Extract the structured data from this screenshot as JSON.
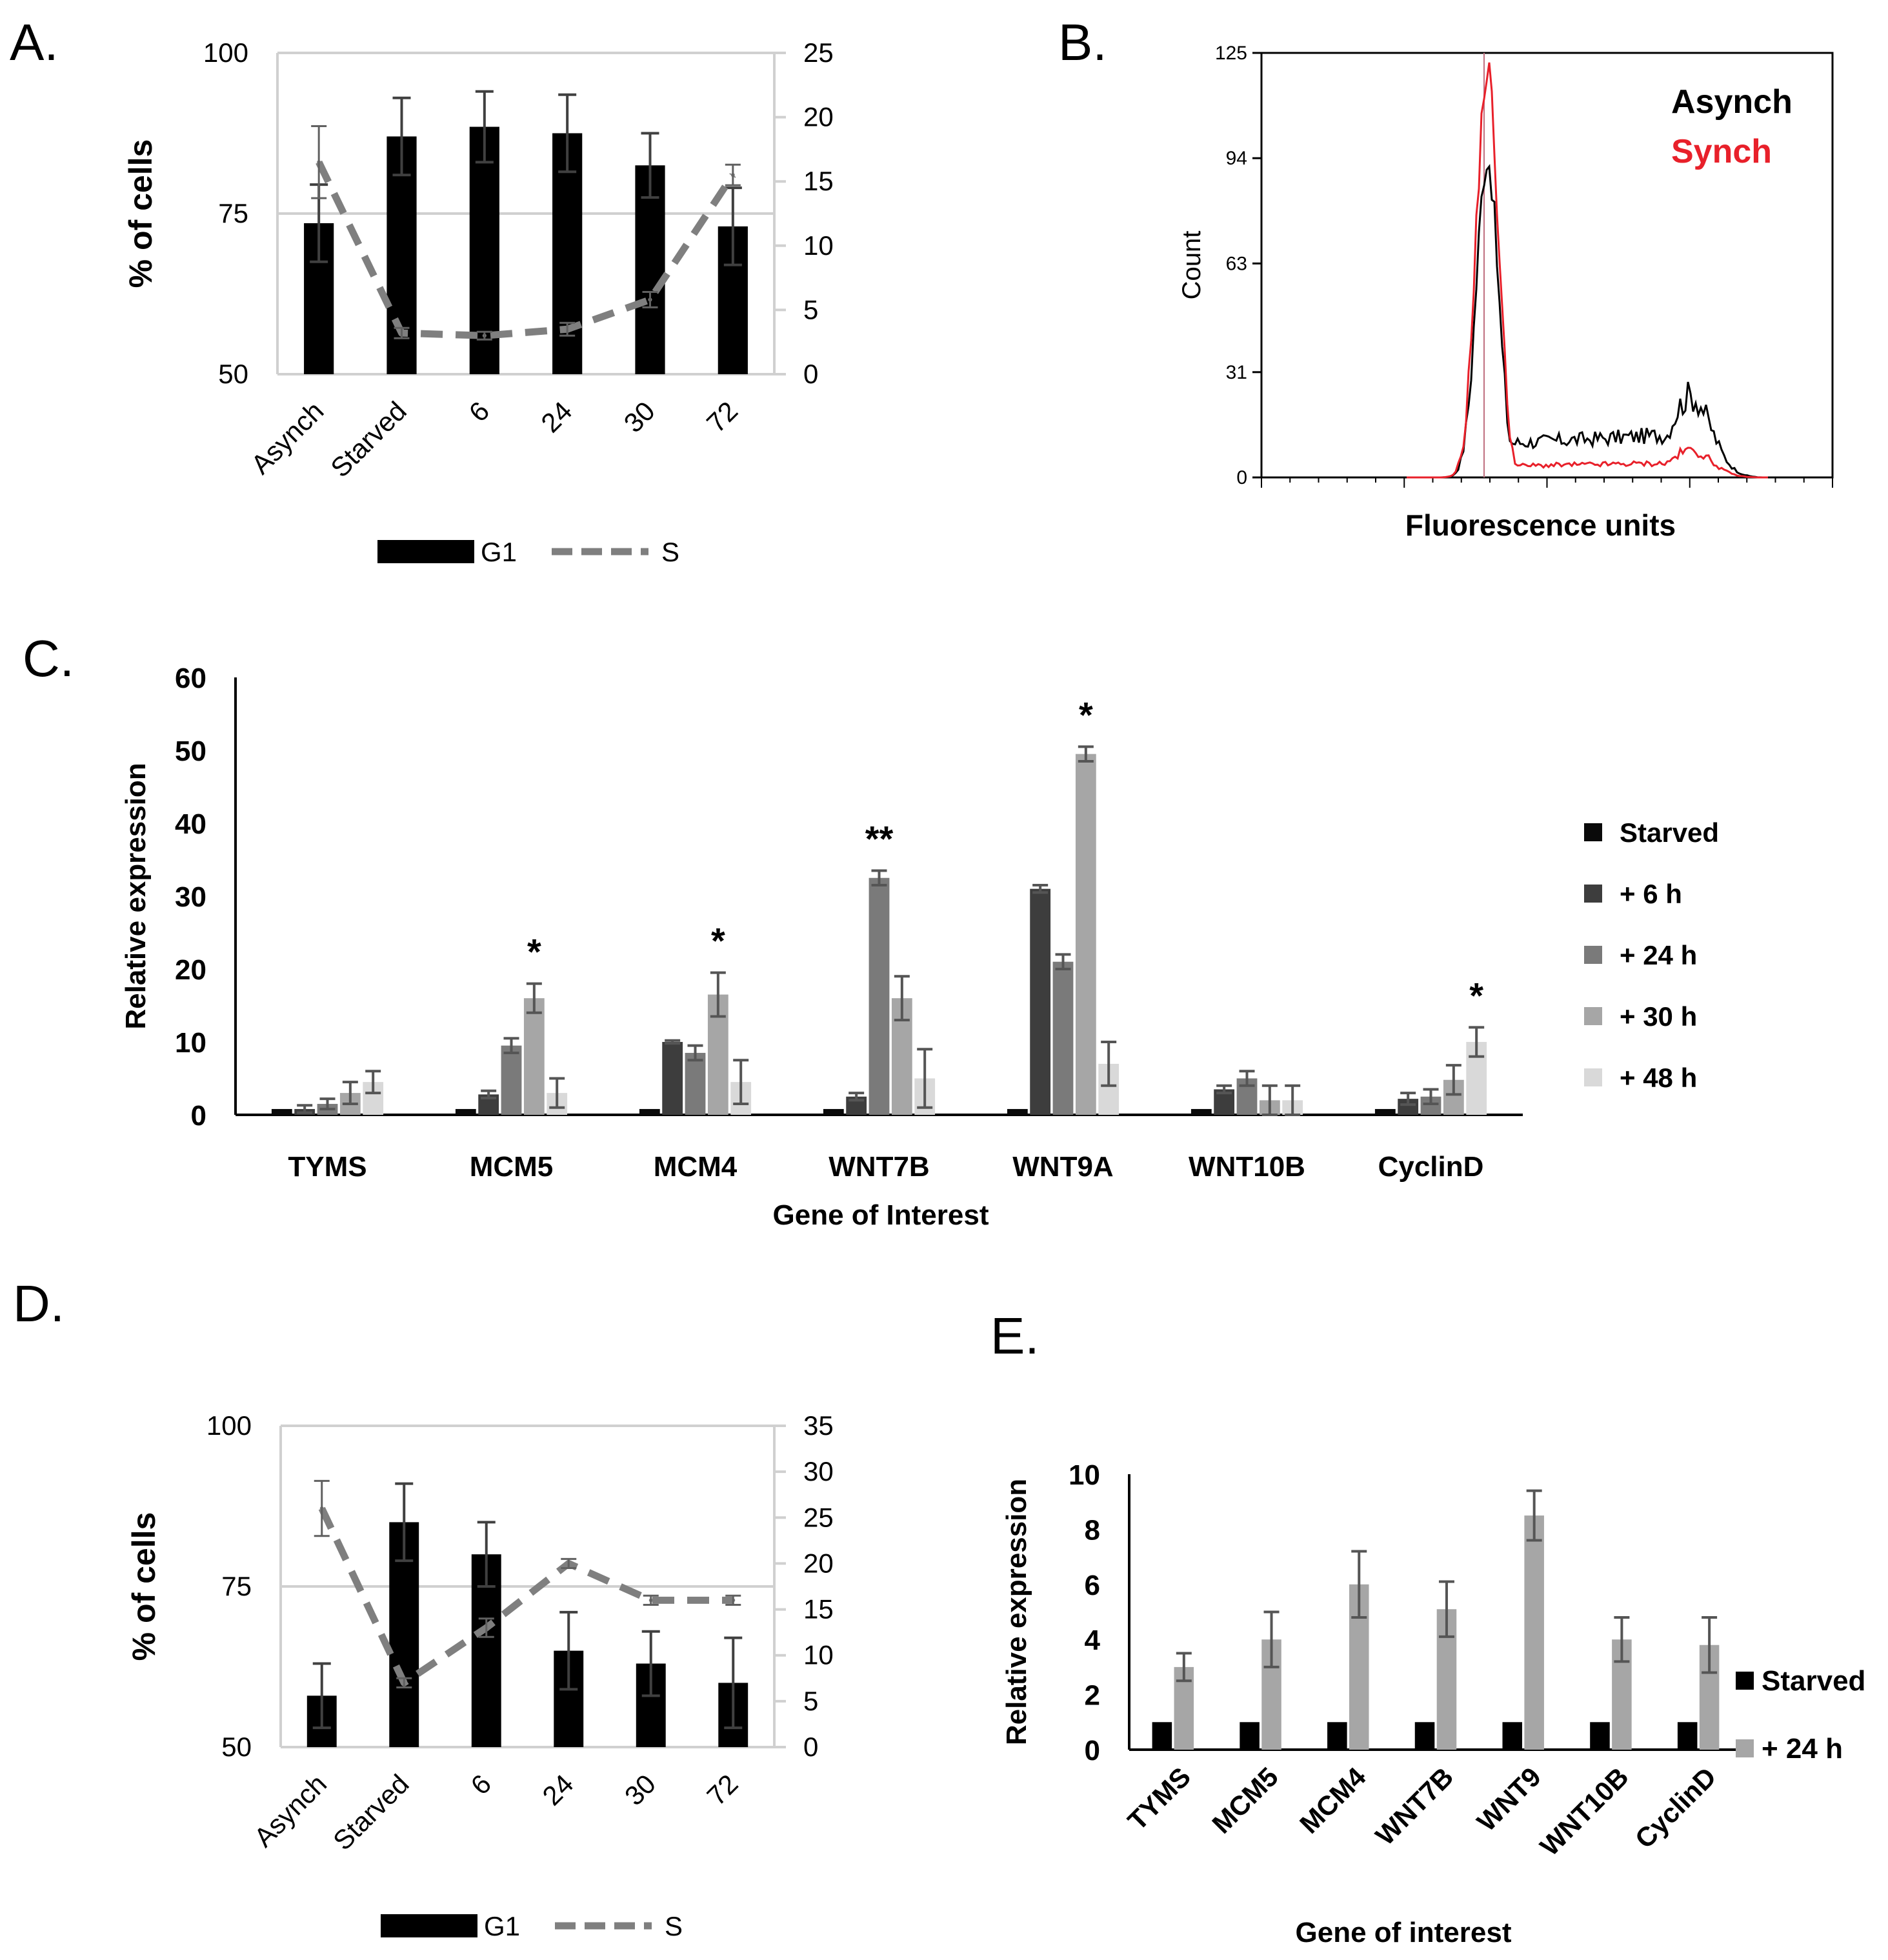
{
  "panels": {
    "A": {
      "letter": "A."
    },
    "B": {
      "letter": "B."
    },
    "C": {
      "letter": "C."
    },
    "D": {
      "letter": "D."
    },
    "E": {
      "letter": "E."
    }
  },
  "colors": {
    "bar_black": "#000000",
    "s_line": "#7f7f7f",
    "synch_red": "#e8202a",
    "gridline": "#d0d0d0",
    "axis": "#000000",
    "c_series": [
      "#0a0a0a",
      "#3d3d3d",
      "#7a7a7a",
      "#a6a6a6",
      "#d9d9d9"
    ],
    "e_series": [
      "#000000",
      "#a6a6a6"
    ]
  },
  "chart_data": [
    {
      "id": "A",
      "type": "bar+line",
      "categories": [
        "Asynch",
        "Starved",
        "6",
        "24",
        "30",
        "72"
      ],
      "ylabel": "% of cells",
      "ylim": [
        50,
        100
      ],
      "yticks": [
        50,
        75,
        100
      ],
      "y2lim": [
        0,
        25
      ],
      "y2ticks": [
        0,
        5,
        10,
        15,
        20,
        25
      ],
      "gridlines": [
        75,
        100
      ],
      "series": [
        {
          "name": "G1",
          "kind": "bar",
          "axis": "left",
          "values": [
            73.5,
            87,
            88.5,
            87.5,
            82.5,
            73
          ],
          "errors": [
            6,
            6,
            5.5,
            6,
            5,
            6
          ]
        },
        {
          "name": "S",
          "kind": "dashed-line",
          "axis": "right",
          "values": [
            16.5,
            3.2,
            3.0,
            3.5,
            5.8,
            15.5
          ],
          "errors": [
            2.8,
            0.4,
            0.3,
            0.5,
            0.6,
            0.8
          ]
        }
      ],
      "legend": [
        "G1",
        "S"
      ],
      "legend_position": "bottom"
    },
    {
      "id": "B",
      "type": "histogram",
      "xlabel": "Fluorescence units",
      "ylabel": "Count",
      "ylim": [
        0,
        125
      ],
      "yticks": [
        0,
        31,
        63,
        94,
        125
      ],
      "series": [
        {
          "name": "Asynch",
          "color": "#000000",
          "peak1": 94,
          "peak2": 24
        },
        {
          "name": "Synch",
          "color": "#e8202a",
          "peak1": 120,
          "peak2": 8
        }
      ],
      "legend_position": "top-right"
    },
    {
      "id": "C",
      "type": "bar",
      "categories": [
        "TYMS",
        "MCM5",
        "MCM4",
        "WNT7B",
        "WNT9A",
        "WNT10B",
        "CyclinD"
      ],
      "xlabel": "Gene of Interest",
      "ylabel": "Relative expression",
      "ylim": [
        0,
        60
      ],
      "yticks": [
        0,
        10,
        20,
        30,
        40,
        50,
        60
      ],
      "series": [
        {
          "name": "Starved",
          "values": [
            0.8,
            0.8,
            0.8,
            0.8,
            0.8,
            0.8,
            0.8
          ],
          "errors": [
            0,
            0,
            0,
            0,
            0,
            0,
            0
          ]
        },
        {
          "name": "+ 6 h",
          "values": [
            0.8,
            2.8,
            10,
            2.5,
            31,
            3.5,
            2.2
          ],
          "errors": [
            0.5,
            0.5,
            0.2,
            0.5,
            0.5,
            0.5,
            0.8
          ]
        },
        {
          "name": "+ 24 h",
          "values": [
            1.5,
            9.5,
            8.5,
            32.5,
            21,
            5,
            2.5
          ],
          "errors": [
            0.7,
            1,
            1,
            1,
            1,
            1,
            1
          ]
        },
        {
          "name": "+ 30 h",
          "values": [
            3,
            16,
            16.5,
            16,
            49.5,
            2,
            4.8
          ],
          "errors": [
            1.5,
            2,
            3,
            3,
            1,
            2,
            2
          ]
        },
        {
          "name": "+ 48 h",
          "values": [
            4.5,
            3,
            4.5,
            5,
            7,
            2,
            10
          ],
          "errors": [
            1.5,
            2,
            3,
            4,
            3,
            2,
            2
          ]
        }
      ],
      "annotations": [
        {
          "category": "MCM5",
          "series": 3,
          "text": "*"
        },
        {
          "category": "MCM4",
          "series": 3,
          "text": "*"
        },
        {
          "category": "WNT7B",
          "series": 2,
          "text": "**"
        },
        {
          "category": "WNT9A",
          "series": 3,
          "text": "*"
        },
        {
          "category": "CyclinD",
          "series": 4,
          "text": "*"
        }
      ],
      "legend_position": "right"
    },
    {
      "id": "D",
      "type": "bar+line",
      "categories": [
        "Asynch",
        "Starved",
        "6",
        "24",
        "30",
        "72"
      ],
      "ylabel": "% of cells",
      "ylim": [
        50,
        100
      ],
      "yticks": [
        50,
        75,
        100
      ],
      "y2lim": [
        0,
        35
      ],
      "y2ticks": [
        0,
        5,
        10,
        15,
        20,
        25,
        30,
        35
      ],
      "gridlines": [
        75,
        100
      ],
      "series": [
        {
          "name": "G1",
          "kind": "bar",
          "axis": "left",
          "values": [
            58,
            85,
            80,
            65,
            63,
            60
          ],
          "errors": [
            5,
            6,
            5,
            6,
            5,
            7
          ]
        },
        {
          "name": "S",
          "kind": "dashed-line",
          "axis": "right",
          "values": [
            26,
            7,
            13,
            20,
            16,
            16
          ],
          "errors": [
            3,
            0.5,
            1,
            0.5,
            0.5,
            0.5
          ]
        }
      ],
      "legend": [
        "G1",
        "S"
      ],
      "legend_position": "bottom"
    },
    {
      "id": "E",
      "type": "bar",
      "categories": [
        "TYMS",
        "MCM5",
        "MCM4",
        "WNT7B",
        "WNT9",
        "WNT10B",
        "CyclinD"
      ],
      "xlabel": "Gene of interest",
      "ylabel": "Relative expression",
      "ylim": [
        0,
        10
      ],
      "yticks": [
        0,
        2,
        4,
        6,
        8,
        10
      ],
      "series": [
        {
          "name": "Starved",
          "values": [
            1,
            1,
            1,
            1,
            1,
            1,
            1
          ],
          "errors": [
            0,
            0,
            0,
            0,
            0,
            0,
            0
          ]
        },
        {
          "name": "+ 24 h",
          "values": [
            3,
            4,
            6,
            5.1,
            8.5,
            4,
            3.8
          ],
          "errors": [
            0.5,
            1,
            1.2,
            1,
            0.9,
            0.8,
            1
          ]
        }
      ],
      "legend_position": "right"
    }
  ]
}
